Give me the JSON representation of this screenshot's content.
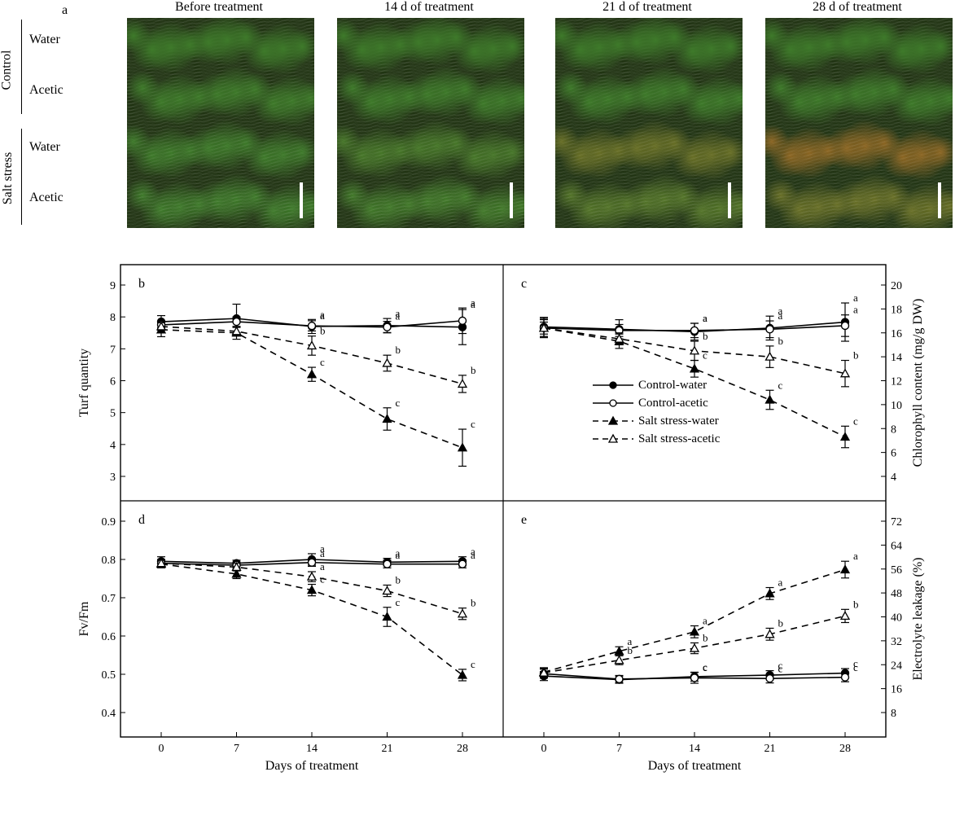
{
  "panel_a": {
    "label": "a",
    "col_headers": [
      "Before treatment",
      "14 d of treatment",
      "21 d of treatment",
      "28 d of treatment"
    ],
    "row_groups": [
      {
        "name": "Control",
        "rows": [
          "Water",
          "Acetic"
        ]
      },
      {
        "name": "Salt stress",
        "rows": [
          "Water",
          "Acetic"
        ]
      }
    ],
    "photo_colors": {
      "healthy": "#3e7a2a",
      "slight_stress": "#6b8f3d",
      "moderate_stress": "#8b9a3f",
      "heavy_stress": "#a89a4a",
      "dark_edge": "#1e3a15"
    },
    "photos_yellowing": [
      [
        0,
        0,
        0,
        0
      ],
      [
        0,
        0,
        0,
        0
      ],
      [
        0,
        0.08,
        0.35,
        0.65
      ],
      [
        0,
        0.03,
        0.18,
        0.35
      ]
    ],
    "scalebar_color": "#ffffff"
  },
  "legend": {
    "items": [
      {
        "label": "Control-water",
        "marker": "circle-filled",
        "dash": false
      },
      {
        "label": "Control-acetic",
        "marker": "circle-open",
        "dash": false
      },
      {
        "label": "Salt stress-water",
        "marker": "triangle-filled",
        "dash": true
      },
      {
        "label": "Salt stress-acetic",
        "marker": "triangle-open",
        "dash": true
      }
    ]
  },
  "colors": {
    "line": "#000000",
    "axis": "#000000",
    "background": "#ffffff"
  },
  "font": {
    "axis_label_pt": 16,
    "tick_pt": 14,
    "panel_tag_pt": 16
  },
  "x_axis": {
    "label": "Days of treatment",
    "ticks": [
      0,
      7,
      14,
      21,
      28
    ]
  },
  "charts": [
    {
      "tag": "b",
      "ylabel": "Turf quantity",
      "ylim": [
        3,
        9
      ],
      "ytick_step": 1,
      "side": "left",
      "series": {
        "control_water": {
          "y": [
            7.85,
            7.95,
            7.7,
            7.73,
            7.68
          ],
          "err": [
            0.19,
            0.45,
            0.22,
            0.22,
            0.55
          ],
          "sig": [
            "",
            "",
            "a",
            "a",
            "a"
          ]
        },
        "control_acetic": {
          "y": [
            7.75,
            7.85,
            7.72,
            7.68,
            7.88
          ],
          "err": [
            0.12,
            0.15,
            0.16,
            0.18,
            0.4
          ],
          "sig": [
            "",
            "",
            "a",
            "a",
            "a"
          ]
        },
        "salt_water": {
          "y": [
            7.6,
            7.5,
            6.2,
            4.8,
            3.9
          ],
          "err": [
            0.22,
            0.2,
            0.22,
            0.35,
            0.58
          ],
          "sig": [
            "",
            "",
            "c",
            "c",
            "c"
          ]
        },
        "salt_acetic": {
          "y": [
            7.7,
            7.55,
            7.1,
            6.55,
            5.9
          ],
          "err": [
            0.12,
            0.12,
            0.3,
            0.25,
            0.27
          ],
          "sig": [
            "",
            "",
            "b",
            "b",
            "b"
          ]
        }
      }
    },
    {
      "tag": "c",
      "ylabel": "Chlorophyll content (mg/g DW)",
      "ylim": [
        4,
        20
      ],
      "ytick_step": 2,
      "side": "right",
      "series": {
        "control_water": {
          "y": [
            16.5,
            16.3,
            16.1,
            16.4,
            16.9
          ],
          "err": [
            0.8,
            0.8,
            0.7,
            1.0,
            1.6
          ],
          "sig": [
            "",
            "",
            "a",
            "a",
            "a"
          ]
        },
        "control_acetic": {
          "y": [
            16.4,
            16.2,
            16.2,
            16.3,
            16.6
          ],
          "err": [
            0.7,
            0.5,
            0.6,
            0.7,
            0.9
          ],
          "sig": [
            "",
            "",
            "a",
            "a",
            "a"
          ]
        },
        "salt_water": {
          "y": [
            16.4,
            15.3,
            13.0,
            10.4,
            7.3
          ],
          "err": [
            0.8,
            0.6,
            0.7,
            0.8,
            0.9
          ],
          "sig": [
            "",
            "",
            "c",
            "c",
            "c"
          ]
        },
        "salt_acetic": {
          "y": [
            16.4,
            15.5,
            14.5,
            14.0,
            12.6
          ],
          "err": [
            0.5,
            0.5,
            0.8,
            0.9,
            1.1
          ],
          "sig": [
            "",
            "",
            "b",
            "b",
            "b"
          ]
        }
      }
    },
    {
      "tag": "d",
      "ylabel": "Fv/Fm",
      "ylim": [
        0.4,
        0.9
      ],
      "ytick_step": 0.1,
      "side": "left",
      "series": {
        "control_water": {
          "y": [
            0.795,
            0.79,
            0.8,
            0.793,
            0.795
          ],
          "err": [
            0.012,
            0.008,
            0.015,
            0.01,
            0.012
          ],
          "sig": [
            "",
            "",
            "a",
            "a",
            "a"
          ]
        },
        "control_acetic": {
          "y": [
            0.79,
            0.785,
            0.792,
            0.788,
            0.788
          ],
          "err": [
            0.01,
            0.008,
            0.01,
            0.01,
            0.01
          ],
          "sig": [
            "",
            "",
            "a",
            "a",
            "a"
          ]
        },
        "salt_water": {
          "y": [
            0.788,
            0.762,
            0.72,
            0.65,
            0.498
          ],
          "err": [
            0.01,
            0.012,
            0.015,
            0.025,
            0.015
          ],
          "sig": [
            "",
            "",
            "c",
            "c",
            "c"
          ]
        },
        "salt_acetic": {
          "y": [
            0.79,
            0.78,
            0.755,
            0.718,
            0.658
          ],
          "err": [
            0.01,
            0.01,
            0.013,
            0.015,
            0.015
          ],
          "sig": [
            "",
            "",
            "a",
            "b",
            "b"
          ]
        }
      }
    },
    {
      "tag": "e",
      "ylabel": "Electrolyte leakage (%)",
      "ylim": [
        8,
        72
      ],
      "ytick_step": 8,
      "side": "right",
      "series": {
        "control_water": {
          "y": [
            20.2,
            19.0,
            20.0,
            20.5,
            21.2
          ],
          "err": [
            1.5,
            1.2,
            1.5,
            1.5,
            1.5
          ],
          "sig": [
            "",
            "",
            "c",
            "c",
            "c"
          ]
        },
        "control_acetic": {
          "y": [
            21.0,
            19.2,
            19.6,
            19.4,
            19.8
          ],
          "err": [
            1.5,
            1.2,
            1.8,
            1.5,
            1.5
          ],
          "sig": [
            "",
            "",
            "c",
            "c",
            "c"
          ]
        },
        "salt_water": {
          "y": [
            21.5,
            28.5,
            35.0,
            47.8,
            55.8
          ],
          "err": [
            1.5,
            1.5,
            2.0,
            2.0,
            2.8
          ],
          "sig": [
            "",
            "a",
            "a",
            "a",
            "a"
          ]
        },
        "salt_acetic": {
          "y": [
            21.3,
            25.5,
            29.5,
            34.2,
            40.3
          ],
          "err": [
            1.5,
            1.5,
            1.8,
            2.0,
            2.2
          ],
          "sig": [
            "",
            "b",
            "b",
            "b",
            "b"
          ]
        }
      }
    }
  ]
}
